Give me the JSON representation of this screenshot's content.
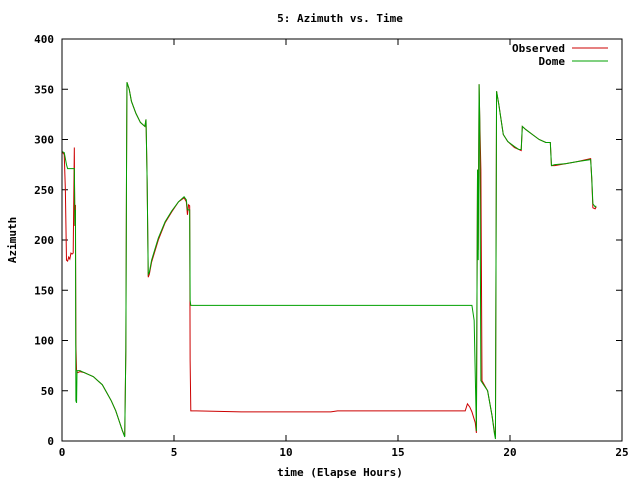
{
  "chart_data": {
    "type": "line",
    "title": "5: Azimuth vs. Time",
    "xlabel": "time (Elapse Hours)",
    "ylabel": "Azimuth",
    "xlim": [
      0,
      25
    ],
    "ylim": [
      0,
      400
    ],
    "x_ticks": [
      "0",
      "5",
      "10",
      "15",
      "20",
      "25"
    ],
    "y_ticks": [
      "0",
      "50",
      "100",
      "150",
      "200",
      "250",
      "300",
      "350",
      "400"
    ],
    "grid": false,
    "legend_position": "top-right",
    "series": [
      {
        "name": "Observed",
        "color": "#cc0000",
        "points": [
          [
            0,
            288
          ],
          [
            0.1,
            285
          ],
          [
            0.15,
            250
          ],
          [
            0.2,
            180
          ],
          [
            0.25,
            179
          ],
          [
            0.3,
            183
          ],
          [
            0.35,
            181
          ],
          [
            0.4,
            187
          ],
          [
            0.45,
            186
          ],
          [
            0.5,
            187
          ],
          [
            0.55,
            292
          ],
          [
            0.57,
            214
          ],
          [
            0.6,
            235
          ],
          [
            0.62,
            96
          ],
          [
            0.65,
            70
          ],
          [
            0.7,
            68
          ],
          [
            0.8,
            69
          ],
          [
            1.0,
            68
          ],
          [
            1.2,
            66
          ],
          [
            1.4,
            64
          ],
          [
            1.6,
            60
          ],
          [
            1.8,
            56
          ],
          [
            2.0,
            48
          ],
          [
            2.2,
            40
          ],
          [
            2.4,
            30
          ],
          [
            2.55,
            20
          ],
          [
            2.7,
            10
          ],
          [
            2.8,
            5
          ],
          [
            2.85,
            90
          ],
          [
            2.88,
            268
          ],
          [
            2.9,
            357
          ],
          [
            3.0,
            350
          ],
          [
            3.1,
            338
          ],
          [
            3.3,
            326
          ],
          [
            3.5,
            317
          ],
          [
            3.7,
            313
          ],
          [
            3.75,
            320
          ],
          [
            3.78,
            285
          ],
          [
            3.8,
            260
          ],
          [
            3.85,
            163
          ],
          [
            3.9,
            166
          ],
          [
            4.0,
            178
          ],
          [
            4.3,
            200
          ],
          [
            4.6,
            217
          ],
          [
            4.9,
            228
          ],
          [
            5.2,
            238
          ],
          [
            5.45,
            242
          ],
          [
            5.55,
            238
          ],
          [
            5.6,
            225
          ],
          [
            5.65,
            235
          ],
          [
            5.7,
            234
          ],
          [
            5.72,
            80
          ],
          [
            5.75,
            30
          ],
          [
            6.0,
            30
          ],
          [
            8.0,
            29
          ],
          [
            10.0,
            29
          ],
          [
            12.0,
            29
          ],
          [
            12.3,
            30
          ],
          [
            14.0,
            30
          ],
          [
            16.0,
            30
          ],
          [
            18.0,
            30
          ],
          [
            18.1,
            37
          ],
          [
            18.2,
            34
          ],
          [
            18.3,
            29
          ],
          [
            18.45,
            18
          ],
          [
            18.5,
            8
          ],
          [
            18.55,
            270
          ],
          [
            18.58,
            190
          ],
          [
            18.62,
            355
          ],
          [
            18.65,
            320
          ],
          [
            18.7,
            270
          ],
          [
            18.75,
            60
          ],
          [
            19.0,
            50
          ],
          [
            19.2,
            25
          ],
          [
            19.3,
            10
          ],
          [
            19.35,
            4
          ],
          [
            19.4,
            348
          ],
          [
            19.5,
            335
          ],
          [
            19.6,
            320
          ],
          [
            19.7,
            305
          ],
          [
            19.9,
            298
          ],
          [
            20.2,
            292
          ],
          [
            20.4,
            290
          ],
          [
            20.5,
            289
          ],
          [
            20.55,
            313
          ],
          [
            20.7,
            310
          ],
          [
            21.0,
            305
          ],
          [
            21.3,
            300
          ],
          [
            21.6,
            297
          ],
          [
            21.8,
            297
          ],
          [
            21.85,
            274
          ],
          [
            22.0,
            274
          ],
          [
            22.5,
            276
          ],
          [
            23.0,
            278
          ],
          [
            23.6,
            281
          ],
          [
            23.65,
            260
          ],
          [
            23.7,
            232
          ],
          [
            23.8,
            231
          ],
          [
            23.85,
            233
          ]
        ]
      },
      {
        "name": "Dome",
        "color": "#00a000",
        "points": [
          [
            0,
            288
          ],
          [
            0.1,
            287
          ],
          [
            0.2,
            275
          ],
          [
            0.25,
            271
          ],
          [
            0.35,
            271
          ],
          [
            0.5,
            271
          ],
          [
            0.55,
            271
          ],
          [
            0.58,
            215
          ],
          [
            0.6,
            230
          ],
          [
            0.62,
            40
          ],
          [
            0.65,
            38
          ],
          [
            0.67,
            70
          ],
          [
            0.8,
            70
          ],
          [
            1.0,
            68
          ],
          [
            1.2,
            66
          ],
          [
            1.4,
            64
          ],
          [
            1.6,
            60
          ],
          [
            1.8,
            56
          ],
          [
            2.0,
            48
          ],
          [
            2.2,
            40
          ],
          [
            2.4,
            30
          ],
          [
            2.55,
            20
          ],
          [
            2.7,
            10
          ],
          [
            2.8,
            4
          ],
          [
            2.85,
            90
          ],
          [
            2.88,
            268
          ],
          [
            2.9,
            357
          ],
          [
            3.0,
            350
          ],
          [
            3.1,
            338
          ],
          [
            3.3,
            326
          ],
          [
            3.5,
            317
          ],
          [
            3.7,
            313
          ],
          [
            3.75,
            320
          ],
          [
            3.78,
            285
          ],
          [
            3.8,
            260
          ],
          [
            3.85,
            166
          ],
          [
            3.9,
            168
          ],
          [
            4.0,
            180
          ],
          [
            4.3,
            202
          ],
          [
            4.6,
            218
          ],
          [
            4.9,
            229
          ],
          [
            5.2,
            238
          ],
          [
            5.45,
            243
          ],
          [
            5.55,
            240
          ],
          [
            5.6,
            230
          ],
          [
            5.65,
            230
          ],
          [
            5.7,
            230
          ],
          [
            5.72,
            140
          ],
          [
            5.75,
            135
          ],
          [
            6.0,
            135
          ],
          [
            8.0,
            135
          ],
          [
            10.0,
            135
          ],
          [
            12.0,
            135
          ],
          [
            14.0,
            135
          ],
          [
            16.0,
            135
          ],
          [
            18.0,
            135
          ],
          [
            18.3,
            135
          ],
          [
            18.4,
            120
          ],
          [
            18.5,
            10
          ],
          [
            18.55,
            270
          ],
          [
            18.58,
            180
          ],
          [
            18.62,
            355
          ],
          [
            18.65,
            320
          ],
          [
            18.7,
            60
          ],
          [
            19.0,
            50
          ],
          [
            19.2,
            25
          ],
          [
            19.3,
            8
          ],
          [
            19.35,
            2
          ],
          [
            19.4,
            348
          ],
          [
            19.5,
            335
          ],
          [
            19.6,
            320
          ],
          [
            19.7,
            305
          ],
          [
            19.9,
            298
          ],
          [
            20.2,
            293
          ],
          [
            20.4,
            290
          ],
          [
            20.5,
            290
          ],
          [
            20.55,
            313
          ],
          [
            20.7,
            310
          ],
          [
            21.0,
            305
          ],
          [
            21.3,
            300
          ],
          [
            21.6,
            297
          ],
          [
            21.8,
            297
          ],
          [
            21.85,
            274
          ],
          [
            22.0,
            275
          ],
          [
            22.5,
            276
          ],
          [
            23.0,
            278
          ],
          [
            23.6,
            280
          ],
          [
            23.65,
            262
          ],
          [
            23.7,
            236
          ],
          [
            23.8,
            233
          ],
          [
            23.85,
            234
          ]
        ]
      }
    ]
  }
}
